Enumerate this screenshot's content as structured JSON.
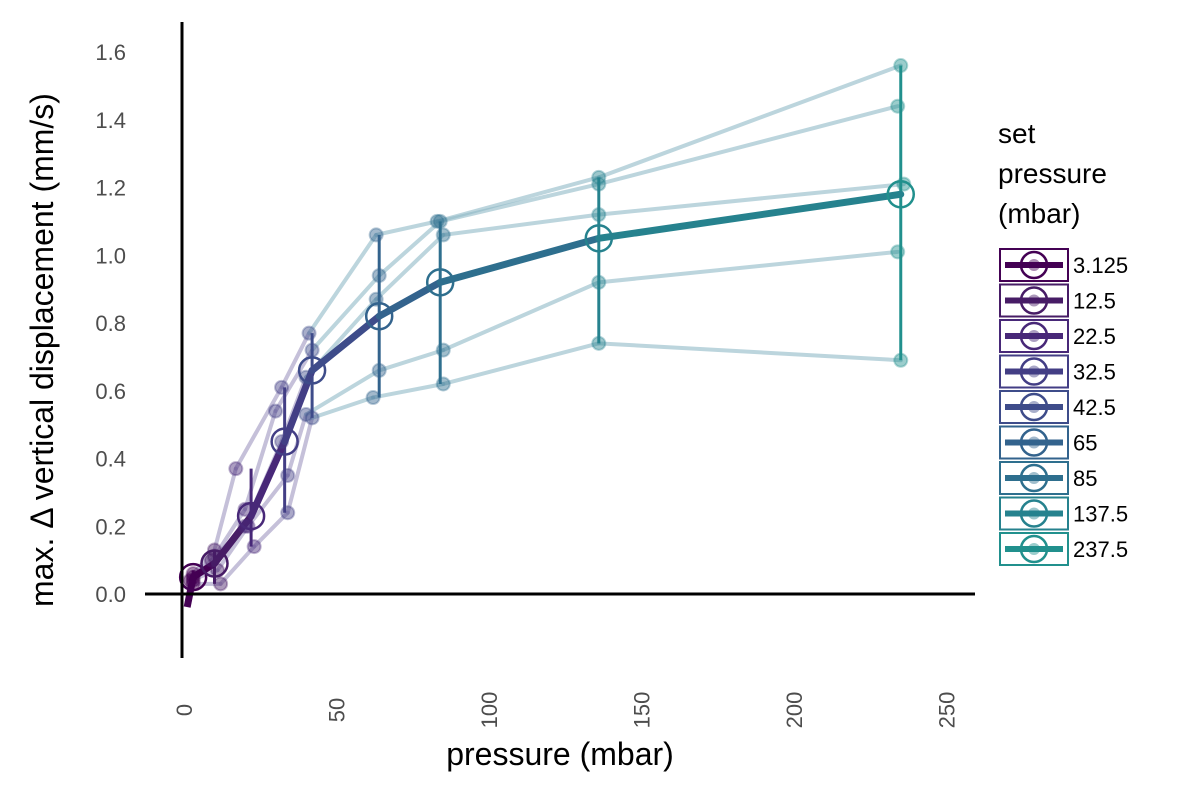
{
  "chart_data": {
    "type": "line",
    "title": "",
    "xlabel": "pressure (mbar)",
    "ylabel": "max. Δ vertical displacement (mm/s)",
    "xlim": [
      -12,
      262
    ],
    "ylim": [
      -0.18,
      1.68
    ],
    "x_ticks": [
      0,
      50,
      100,
      150,
      200,
      250
    ],
    "x_tick_labels": [
      "0",
      "50",
      "100",
      "150",
      "200",
      "250"
    ],
    "y_ticks": [
      0.0,
      0.2,
      0.4,
      0.6,
      0.8,
      1.0,
      1.2,
      1.4,
      1.6
    ],
    "y_tick_labels": [
      "0.0",
      "0.2",
      "0.4",
      "0.6",
      "0.8",
      "1.0",
      "1.2",
      "1.4",
      "1.6"
    ],
    "grid": false,
    "legend": {
      "title": "set pressure (mbar)",
      "title_lines": [
        "set",
        "pressure",
        "(mbar)"
      ],
      "placement": "right",
      "entries": [
        "3.125",
        "12.5",
        "22.5",
        "32.5",
        "42.5",
        "65",
        "85",
        "137.5",
        "237.5"
      ],
      "colors": [
        "#440154",
        "#471c66",
        "#482878",
        "#433e85",
        "#3e4c8a",
        "#33638d",
        "#2e6f8e",
        "#26828e",
        "#21908d"
      ]
    },
    "mean_series": {
      "name": "mean",
      "x": [
        3,
        10,
        22,
        33,
        42,
        64,
        84,
        136,
        235
      ],
      "y": [
        0.05,
        0.09,
        0.23,
        0.45,
        0.66,
        0.82,
        0.92,
        1.05,
        1.18
      ],
      "error_low": [
        0.02,
        0.03,
        0.14,
        0.24,
        0.52,
        0.58,
        0.62,
        0.74,
        0.69
      ],
      "error_high": [
        0.07,
        0.13,
        0.37,
        0.61,
        0.77,
        1.06,
        1.1,
        1.23,
        1.56
      ]
    },
    "replicates": [
      {
        "name": "replicate 1",
        "x": [
          3,
          10,
          17,
          32,
          41,
          63,
          83,
          136,
          235
        ],
        "y": [
          0.06,
          0.13,
          0.37,
          0.61,
          0.77,
          1.06,
          1.1,
          1.23,
          1.56
        ]
      },
      {
        "name": "replicate 2",
        "x": [
          3,
          10,
          20,
          30,
          42,
          64,
          84,
          136,
          234
        ],
        "y": [
          0.05,
          0.11,
          0.25,
          0.54,
          0.72,
          0.94,
          1.1,
          1.21,
          1.44
        ]
      },
      {
        "name": "replicate 3",
        "x": [
          3,
          9,
          20,
          32,
          40,
          63,
          85,
          136,
          236
        ],
        "y": [
          0.04,
          0.1,
          0.2,
          0.45,
          0.64,
          0.87,
          1.06,
          1.12,
          1.21
        ]
      },
      {
        "name": "replicate 4",
        "x": [
          2,
          11,
          21,
          34,
          40,
          64,
          85,
          136,
          234
        ],
        "y": [
          0.04,
          0.07,
          0.2,
          0.35,
          0.53,
          0.66,
          0.72,
          0.92,
          1.01
        ]
      },
      {
        "name": "replicate 5",
        "x": [
          3,
          12,
          23,
          34,
          42,
          62,
          85,
          136,
          235
        ],
        "y": [
          0.03,
          0.03,
          0.14,
          0.24,
          0.52,
          0.58,
          0.62,
          0.74,
          0.69
        ]
      }
    ]
  }
}
